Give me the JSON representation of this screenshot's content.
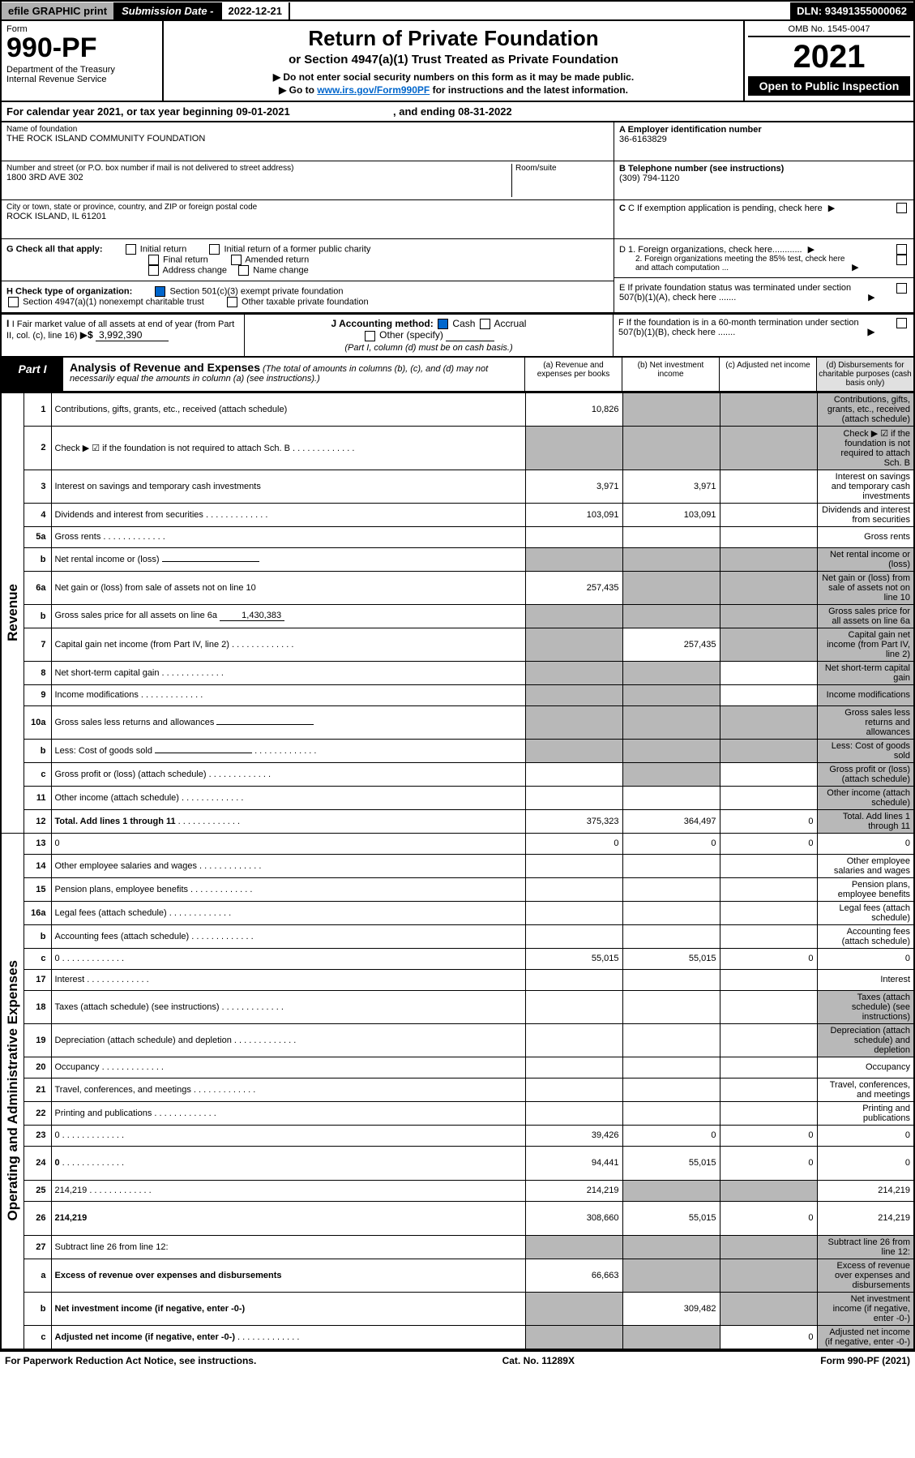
{
  "topbar": {
    "efile": "efile GRAPHIC print",
    "subdate_label": "Submission Date - ",
    "subdate": "2022-12-21",
    "dln_label": "DLN: ",
    "dln": "93491355000062"
  },
  "header": {
    "form_label": "Form",
    "form_no": "990-PF",
    "dept": "Department of the Treasury\nInternal Revenue Service",
    "title": "Return of Private Foundation",
    "subtitle": "or Section 4947(a)(1) Trust Treated as Private Foundation",
    "note1": "▶ Do not enter social security numbers on this form as it may be made public.",
    "note2_pre": "▶ Go to ",
    "note2_link": "www.irs.gov/Form990PF",
    "note2_post": " for instructions and the latest information.",
    "omb": "OMB No. 1545-0047",
    "year": "2021",
    "open": "Open to Public Inspection"
  },
  "calrow": {
    "pre": "For calendar year 2021, or tax year beginning ",
    "begin": "09-01-2021",
    "mid": ", and ending ",
    "end": "08-31-2022"
  },
  "info": {
    "name_label": "Name of foundation",
    "name": "THE ROCK ISLAND COMMUNITY FOUNDATION",
    "addr_label": "Number and street (or P.O. box number if mail is not delivered to street address)",
    "room_label": "Room/suite",
    "addr": "1800 3RD AVE 302",
    "city_label": "City or town, state or province, country, and ZIP or foreign postal code",
    "city": "ROCK ISLAND, IL  61201",
    "ein_label": "A Employer identification number",
    "ein": "36-6163829",
    "tel_label": "B Telephone number (see instructions)",
    "tel": "(309) 794-1120",
    "c_label": "C If exemption application is pending, check here",
    "d1_label": "D 1. Foreign organizations, check here............",
    "d2_label": "2. Foreign organizations meeting the 85% test, check here and attach computation ...",
    "e_label": "E If private foundation status was terminated under section 507(b)(1)(A), check here .......",
    "f_label": "F If the foundation is in a 60-month termination under section 507(b)(1)(B), check here .......",
    "g_label": "G Check all that apply:",
    "g_opts": [
      "Initial return",
      "Initial return of a former public charity",
      "Final return",
      "Amended return",
      "Address change",
      "Name change"
    ],
    "h_label": "H Check type of organization:",
    "h_opts": [
      "Section 501(c)(3) exempt private foundation",
      "Section 4947(a)(1) nonexempt charitable trust",
      "Other taxable private foundation"
    ],
    "i_label": "I Fair market value of all assets at end of year (from Part II, col. (c), line 16)",
    "i_val": "3,992,390",
    "j_label": "J Accounting method:",
    "j_opts": [
      "Cash",
      "Accrual",
      "Other (specify)"
    ],
    "j_note": "(Part I, column (d) must be on cash basis.)"
  },
  "part1": {
    "tab": "Part I",
    "title": "Analysis of Revenue and Expenses",
    "title_note": "(The total of amounts in columns (b), (c), and (d) may not necessarily equal the amounts in column (a) (see instructions).)",
    "col_a": "(a) Revenue and expenses per books",
    "col_b": "(b) Net investment income",
    "col_c": "(c) Adjusted net income",
    "col_d": "(d) Disbursements for charitable purposes (cash basis only)"
  },
  "sidelabels": {
    "rev": "Revenue",
    "exp": "Operating and Administrative Expenses"
  },
  "rows": [
    {
      "n": "1",
      "d": "Contributions, gifts, grants, etc., received (attach schedule)",
      "a": "10,826",
      "shade": [
        "b",
        "c",
        "d"
      ]
    },
    {
      "n": "2",
      "d": "Check ▶ ☑ if the foundation is not required to attach Sch. B",
      "dots": true,
      "shade": [
        "a",
        "b",
        "c",
        "d"
      ]
    },
    {
      "n": "3",
      "d": "Interest on savings and temporary cash investments",
      "a": "3,971",
      "b": "3,971"
    },
    {
      "n": "4",
      "d": "Dividends and interest from securities",
      "dots": true,
      "a": "103,091",
      "b": "103,091"
    },
    {
      "n": "5a",
      "d": "Gross rents",
      "dots": true
    },
    {
      "n": "b",
      "d": "Net rental income or (loss)",
      "sub": true,
      "shade": [
        "a",
        "b",
        "c",
        "d"
      ]
    },
    {
      "n": "6a",
      "d": "Net gain or (loss) from sale of assets not on line 10",
      "a": "257,435",
      "shade": [
        "b",
        "c",
        "d"
      ]
    },
    {
      "n": "b",
      "d": "Gross sales price for all assets on line 6a",
      "subval": "1,430,383",
      "shade": [
        "a",
        "b",
        "c",
        "d"
      ]
    },
    {
      "n": "7",
      "d": "Capital gain net income (from Part IV, line 2)",
      "dots": true,
      "b": "257,435",
      "shade": [
        "a",
        "c",
        "d"
      ]
    },
    {
      "n": "8",
      "d": "Net short-term capital gain",
      "dots": true,
      "shade": [
        "a",
        "b",
        "d"
      ]
    },
    {
      "n": "9",
      "d": "Income modifications",
      "dots": true,
      "shade": [
        "a",
        "b",
        "d"
      ]
    },
    {
      "n": "10a",
      "d": "Gross sales less returns and allowances",
      "sub": true,
      "shade": [
        "a",
        "b",
        "c",
        "d"
      ]
    },
    {
      "n": "b",
      "d": "Less: Cost of goods sold",
      "dots": true,
      "sub": true,
      "shade": [
        "a",
        "b",
        "c",
        "d"
      ]
    },
    {
      "n": "c",
      "d": "Gross profit or (loss) (attach schedule)",
      "dots": true,
      "shade": [
        "b",
        "d"
      ]
    },
    {
      "n": "11",
      "d": "Other income (attach schedule)",
      "dots": true,
      "shade": [
        "d"
      ]
    },
    {
      "n": "12",
      "d": "Total. Add lines 1 through 11",
      "dots": true,
      "bold": true,
      "a": "375,323",
      "b": "364,497",
      "c": "0",
      "shade": [
        "d"
      ]
    },
    {
      "n": "13",
      "d": "0",
      "a": "0",
      "b": "0",
      "c": "0"
    },
    {
      "n": "14",
      "d": "Other employee salaries and wages",
      "dots": true
    },
    {
      "n": "15",
      "d": "Pension plans, employee benefits",
      "dots": true
    },
    {
      "n": "16a",
      "d": "Legal fees (attach schedule)",
      "dots": true
    },
    {
      "n": "b",
      "d": "Accounting fees (attach schedule)",
      "dots": true
    },
    {
      "n": "c",
      "d": "0",
      "dots": true,
      "a": "55,015",
      "b": "55,015",
      "c": "0"
    },
    {
      "n": "17",
      "d": "Interest",
      "dots": true
    },
    {
      "n": "18",
      "d": "Taxes (attach schedule) (see instructions)",
      "dots": true,
      "shade": [
        "d"
      ]
    },
    {
      "n": "19",
      "d": "Depreciation (attach schedule) and depletion",
      "dots": true,
      "shade": [
        "d"
      ]
    },
    {
      "n": "20",
      "d": "Occupancy",
      "dots": true
    },
    {
      "n": "21",
      "d": "Travel, conferences, and meetings",
      "dots": true
    },
    {
      "n": "22",
      "d": "Printing and publications",
      "dots": true
    },
    {
      "n": "23",
      "d": "0",
      "dots": true,
      "a": "39,426",
      "b": "0",
      "c": "0"
    },
    {
      "n": "24",
      "d": "0",
      "dots": true,
      "bold": true,
      "a": "94,441",
      "b": "55,015",
      "c": "0",
      "tall": true
    },
    {
      "n": "25",
      "d": "214,219",
      "dots": true,
      "a": "214,219",
      "shade": [
        "b",
        "c"
      ]
    },
    {
      "n": "26",
      "d": "214,219",
      "bold": true,
      "a": "308,660",
      "b": "55,015",
      "c": "0",
      "tall": true
    },
    {
      "n": "27",
      "d": "Subtract line 26 from line 12:",
      "shade": [
        "a",
        "b",
        "c",
        "d"
      ]
    },
    {
      "n": "a",
      "d": "Excess of revenue over expenses and disbursements",
      "bold": true,
      "a": "66,663",
      "shade": [
        "b",
        "c",
        "d"
      ]
    },
    {
      "n": "b",
      "d": "Net investment income (if negative, enter -0-)",
      "bold": true,
      "b": "309,482",
      "shade": [
        "a",
        "c",
        "d"
      ]
    },
    {
      "n": "c",
      "d": "Adjusted net income (if negative, enter -0-)",
      "dots": true,
      "bold": true,
      "c": "0",
      "shade": [
        "a",
        "b",
        "d"
      ]
    }
  ],
  "footer": {
    "left": "For Paperwork Reduction Act Notice, see instructions.",
    "mid": "Cat. No. 11289X",
    "right": "Form 990-PF (2021)"
  }
}
